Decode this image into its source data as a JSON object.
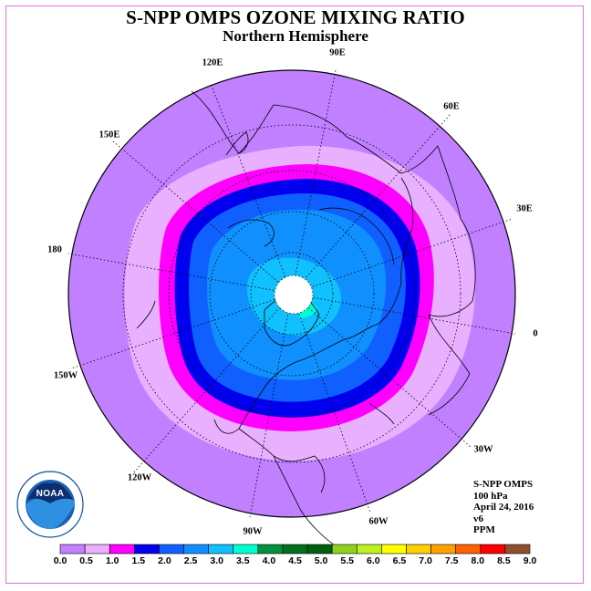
{
  "title": "S-NPP OMPS OZONE MIXING RATIO",
  "subtitle": "Northern Hemisphere",
  "info": {
    "instrument": "S-NPP OMPS",
    "level": "100 hPa",
    "date": "April 24, 2016",
    "version": "v6",
    "units": "PPM"
  },
  "longitude_labels": [
    "90E",
    "60E",
    "30E",
    "0",
    "30W",
    "60W",
    "90W",
    "120W",
    "150W",
    "180",
    "150E",
    "120E"
  ],
  "colorbar": {
    "ticks": [
      "0.0",
      "0.5",
      "1.0",
      "1.5",
      "2.0",
      "2.5",
      "3.0",
      "3.5",
      "4.0",
      "4.5",
      "5.0",
      "5.5",
      "6.0",
      "6.5",
      "7.0",
      "7.5",
      "8.0",
      "8.5",
      "9.0"
    ],
    "colors": [
      "#c080ff",
      "#e8b0ff",
      "#ff00ff",
      "#0000ee",
      "#1060ff",
      "#1090ff",
      "#10c0ff",
      "#00ffd0",
      "#009040",
      "#007020",
      "#006010",
      "#90d020",
      "#c0f020",
      "#ffff00",
      "#ffd000",
      "#ffa000",
      "#ff6000",
      "#ff0000",
      "#905030"
    ]
  },
  "colors": {
    "frame": "#e070e0",
    "land_outline": "#000000",
    "pole_mask": "#ffffff"
  },
  "logo": {
    "text": "NOAA",
    "ring_text": "NATIONAL OCEANIC AND ATMOSPHERIC ADMINISTRATION · U.S. DEPARTMENT OF COMMERCE"
  }
}
